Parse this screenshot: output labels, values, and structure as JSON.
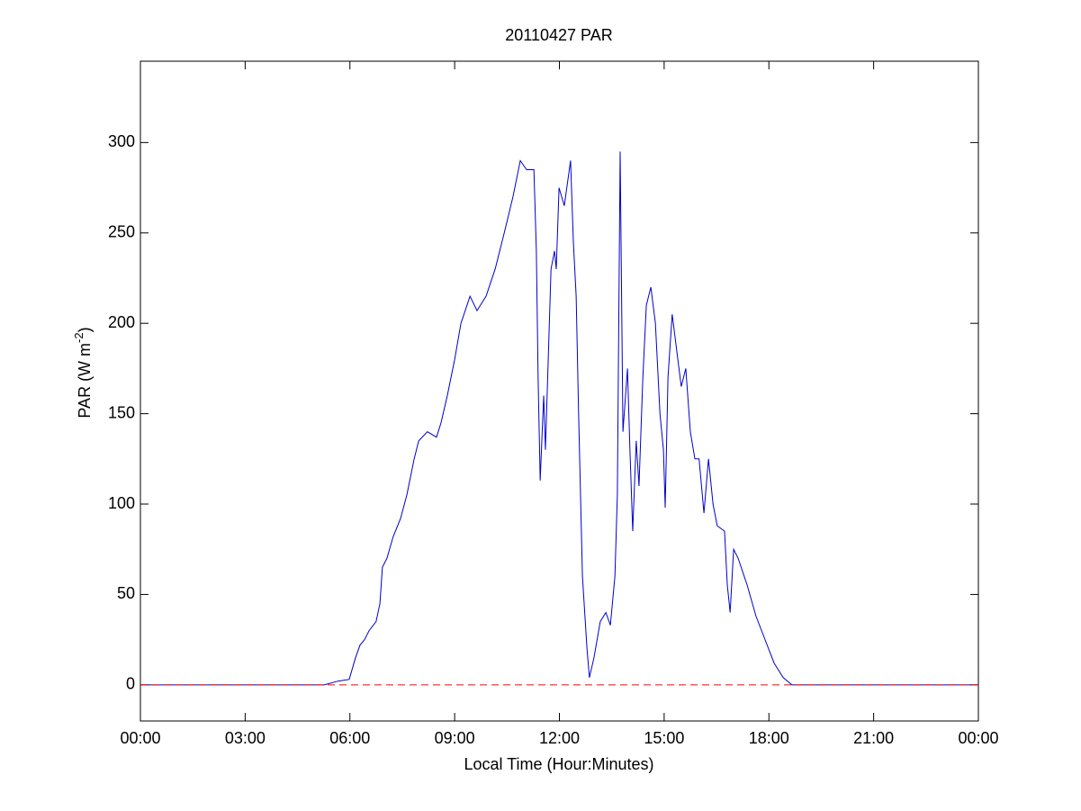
{
  "chart_data": {
    "type": "line",
    "title": "20110427 PAR",
    "xlabel": "Local Time (Hour:Minutes)",
    "ylabel": [
      "PAR (W m",
      "-2",
      ")"
    ],
    "xlim": [
      0,
      24
    ],
    "xticks": [
      {
        "value": 0,
        "label": "00:00"
      },
      {
        "value": 3,
        "label": "03:00"
      },
      {
        "value": 6,
        "label": "06:00"
      },
      {
        "value": 9,
        "label": "09:00"
      },
      {
        "value": 12,
        "label": "12:00"
      },
      {
        "value": 15,
        "label": "15:00"
      },
      {
        "value": 18,
        "label": "18:00"
      },
      {
        "value": 21,
        "label": "21:00"
      },
      {
        "value": 24,
        "label": "00:00"
      }
    ],
    "ylim": [
      -20,
      345
    ],
    "yticks": [
      0,
      50,
      100,
      150,
      200,
      250,
      300
    ],
    "grid": false,
    "series": [
      {
        "color": "#0000cc",
        "linestyle": "solid",
        "x": [
          0,
          5.26,
          5.65,
          5.98,
          6.16,
          6.29,
          6.42,
          6.55,
          6.75,
          6.86,
          6.93,
          7.06,
          7.24,
          7.45,
          7.63,
          7.84,
          7.97,
          8.22,
          8.48,
          8.61,
          8.79,
          9.0,
          9.18,
          9.44,
          9.64,
          9.9,
          10.16,
          10.42,
          10.67,
          10.88,
          11.06,
          11.27,
          11.34,
          11.39,
          11.45,
          11.55,
          11.6,
          11.68,
          11.76,
          11.86,
          11.91,
          11.99,
          12.14,
          12.32,
          12.4,
          12.48,
          12.55,
          12.66,
          12.79,
          12.86,
          12.99,
          13.17,
          13.33,
          13.46,
          13.59,
          13.66,
          13.74,
          13.82,
          13.95,
          14.02,
          14.1,
          14.2,
          14.28,
          14.39,
          14.49,
          14.62,
          14.75,
          14.88,
          14.98,
          15.03,
          15.11,
          15.23,
          15.36,
          15.49,
          15.62,
          15.75,
          15.88,
          16.0,
          16.14,
          16.27,
          16.4,
          16.52,
          16.73,
          16.81,
          16.89,
          16.99,
          17.12,
          17.38,
          17.63,
          17.89,
          18.15,
          18.41,
          18.66,
          24
        ],
        "values": [
          0,
          0,
          2,
          3,
          15,
          22,
          25,
          30,
          35,
          45,
          65,
          70,
          82,
          92,
          105,
          125,
          135,
          140,
          137,
          145,
          160,
          180,
          200,
          215,
          207,
          215,
          230,
          250,
          270,
          290,
          285,
          285,
          240,
          170,
          113,
          160,
          130,
          180,
          230,
          240,
          230,
          275,
          265,
          290,
          245,
          215,
          150,
          60,
          20,
          4,
          15,
          35,
          40,
          33,
          60,
          105,
          295,
          140,
          175,
          130,
          85,
          135,
          110,
          170,
          210,
          220,
          200,
          150,
          130,
          98,
          170,
          205,
          185,
          165,
          175,
          140,
          125,
          125,
          95,
          125,
          100,
          88,
          85,
          55,
          40,
          75,
          70,
          55,
          38,
          25,
          12,
          4,
          0,
          0
        ]
      },
      {
        "color": "#ff0000",
        "linestyle": "dashed",
        "x": [
          0,
          24
        ],
        "values": [
          0,
          0
        ]
      }
    ]
  }
}
